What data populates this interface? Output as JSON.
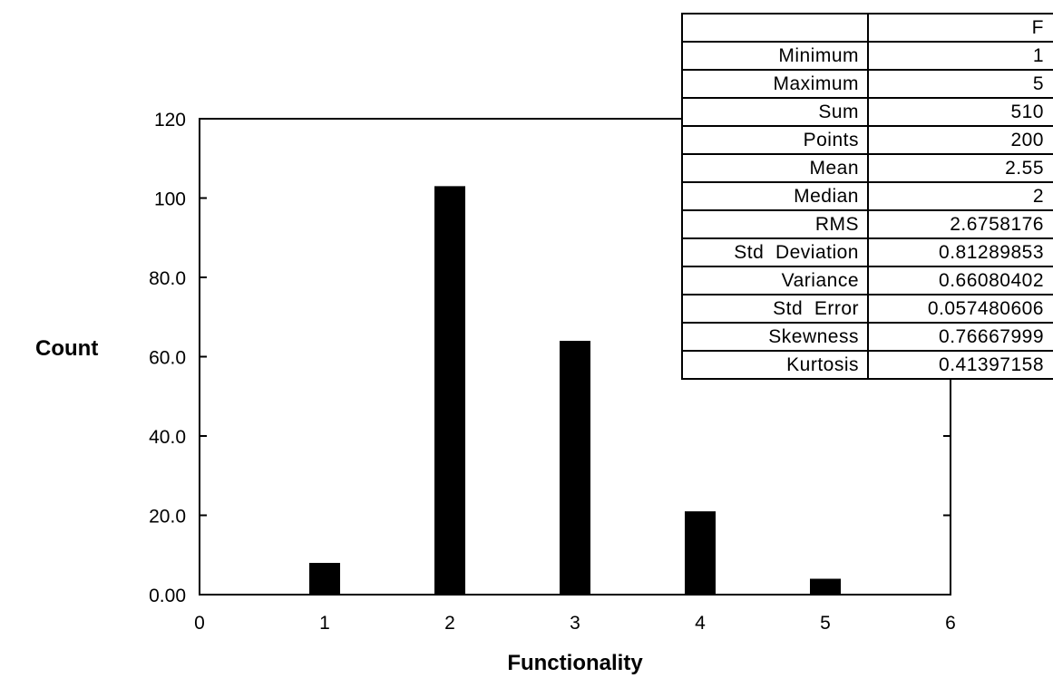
{
  "chart_data": {
    "type": "bar",
    "xlabel": "Functionality",
    "ylabel": "Count",
    "xlim": [
      0,
      6
    ],
    "ylim": [
      0,
      120
    ],
    "x_ticks": [
      "0",
      "1",
      "2",
      "3",
      "4",
      "5",
      "6"
    ],
    "y_ticks": [
      "0.00",
      "20.0",
      "40.0",
      "60.0",
      "80.0",
      "100",
      "120"
    ],
    "categories": [
      1,
      2,
      3,
      4,
      5
    ],
    "values": [
      8,
      103,
      64,
      21,
      4
    ],
    "bar_color": "#000000",
    "grid": false
  },
  "stats_table": {
    "column_header": "F",
    "rows": [
      {
        "label": "Minimum",
        "value": "1"
      },
      {
        "label": "Maximum",
        "value": "5"
      },
      {
        "label": "Sum",
        "value": "510"
      },
      {
        "label": "Points",
        "value": "200"
      },
      {
        "label": "Mean",
        "value": "2.55"
      },
      {
        "label": "Median",
        "value": "2"
      },
      {
        "label": "RMS",
        "value": "2.6758176"
      },
      {
        "label": "Std  Deviation",
        "value": "0.81289853"
      },
      {
        "label": "Variance",
        "value": "0.66080402"
      },
      {
        "label": "Std  Error",
        "value": "0.057480606"
      },
      {
        "label": "Skewness",
        "value": "0.76667999"
      },
      {
        "label": "Kurtosis",
        "value": "0.41397158"
      }
    ]
  }
}
